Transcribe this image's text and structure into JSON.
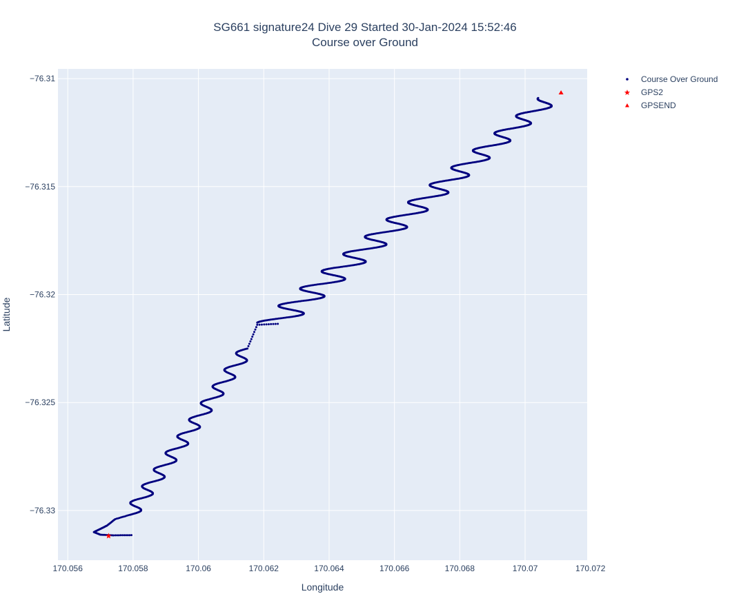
{
  "chart_data": {
    "type": "scatter",
    "title_line1": "SG661 signature24 Dive 29 Started 30-Jan-2024 15:52:46",
    "title_line2": "Course over Ground",
    "xlabel": "Longitude",
    "ylabel": "Latitude",
    "xlim": [
      170.0557,
      170.0719
    ],
    "ylim": [
      -76.3323,
      -76.30955
    ],
    "xticks": [
      170.056,
      170.058,
      170.06,
      170.062,
      170.064,
      170.066,
      170.068,
      170.07,
      170.072
    ],
    "xtick_labels": [
      "170.056",
      "170.058",
      "170.06",
      "170.062",
      "170.064",
      "170.066",
      "170.068",
      "170.07",
      "170.072"
    ],
    "yticks": [
      -76.31,
      -76.315,
      -76.32,
      -76.325,
      -76.33
    ],
    "ytick_labels": [
      "−76.31",
      "−76.315",
      "−76.32",
      "−76.325",
      "−76.33"
    ],
    "grid": true,
    "legend_position": "top-right, outside plot",
    "plot_background": "#e5ecf6",
    "series": [
      {
        "name": "Course Over Ground",
        "marker": "dot",
        "color": "#00007f",
        "path_anchors": [
          {
            "x": 170.05795,
            "y": -76.33114
          },
          {
            "x": 170.0574,
            "y": -76.33115
          },
          {
            "x": 170.057,
            "y": -76.33112
          },
          {
            "x": 170.0568,
            "y": -76.331
          },
          {
            "x": 170.057,
            "y": -76.33085
          },
          {
            "x": 170.0572,
            "y": -76.3307
          },
          {
            "x": 170.05745,
            "y": -76.3304
          },
          {
            "x": 170.0579,
            "y": -76.3302
          },
          {
            "x": 170.0615,
            "y": -76.3225
          },
          {
            "x": 170.0618,
            "y": -76.3214
          },
          {
            "x": 170.0625,
            "y": -76.32135
          }
        ],
        "zigzag": {
          "start": {
            "x": 170.0618,
            "y": -76.3213
          },
          "end": {
            "x": 170.0704,
            "y": -76.3109
          },
          "cycles": 13,
          "amplitude_x": 0.0011
        },
        "wiggle": {
          "cycles": 10,
          "amplitude_x": 0.00025
        }
      },
      {
        "name": "GPS2",
        "marker": "star",
        "color": "#ff0000",
        "points": [
          {
            "x": 170.05725,
            "y": -76.33118
          }
        ]
      },
      {
        "name": "GPSEND",
        "marker": "triangle-up",
        "color": "#ff0000",
        "points": [
          {
            "x": 170.0711,
            "y": -76.31065
          }
        ]
      }
    ]
  }
}
